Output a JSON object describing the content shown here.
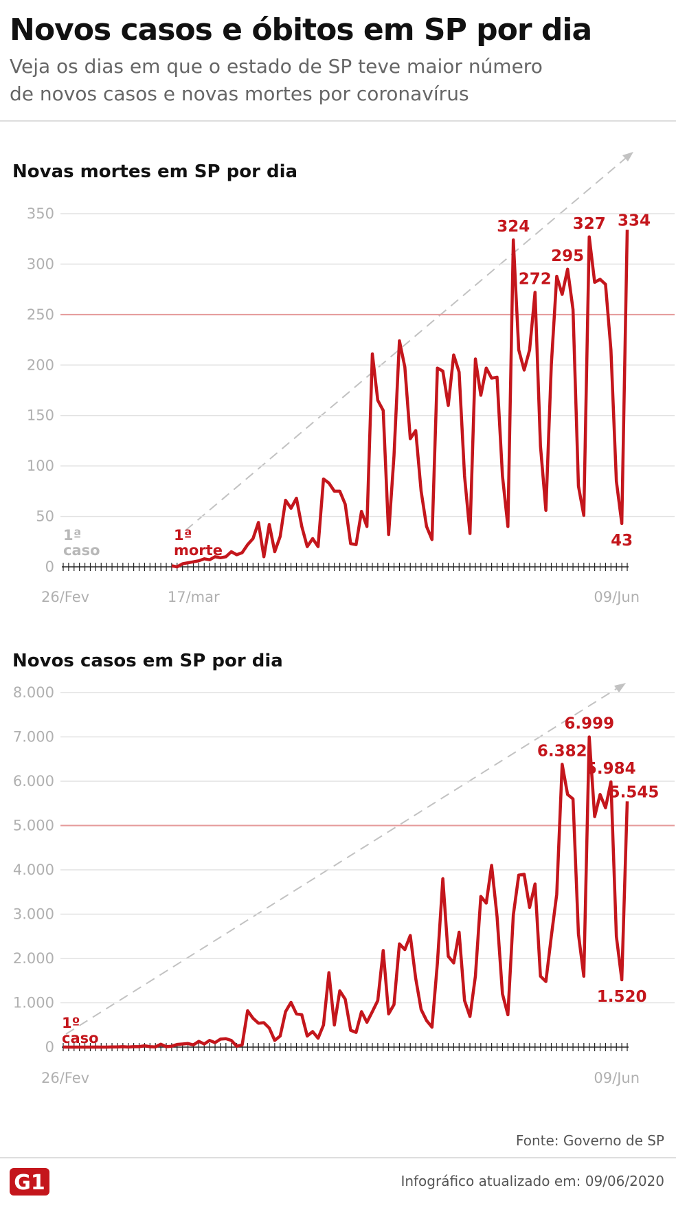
{
  "header": {
    "title": "Novos casos e óbitos em SP por dia",
    "subtitle_lines": [
      "Veja os dias em que o estado de SP teve maior número",
      "de novos casos e novas mortes por coronavírus"
    ]
  },
  "chart_data": [
    {
      "type": "line",
      "title": "Novas mortes em SP por dia",
      "color": "#c4161c",
      "categories": [
        "26/Fev",
        null,
        null,
        null,
        null,
        null,
        null,
        null,
        null,
        null,
        null,
        null,
        null,
        null,
        null,
        null,
        null,
        null,
        null,
        null,
        "17/mar",
        null,
        null,
        null,
        null,
        null,
        null,
        null,
        null,
        null,
        null,
        null,
        null,
        null,
        null,
        null,
        null,
        null,
        null,
        null,
        null,
        null,
        null,
        null,
        null,
        null,
        null,
        null,
        null,
        null,
        null,
        null,
        null,
        null,
        null,
        null,
        null,
        null,
        null,
        null,
        null,
        null,
        null,
        null,
        null,
        null,
        null,
        null,
        null,
        null,
        null,
        null,
        null,
        null,
        null,
        null,
        null,
        null,
        null,
        null,
        null,
        null,
        null,
        null,
        null,
        null,
        null,
        null,
        null,
        null,
        null,
        null,
        null,
        null,
        null,
        null,
        null,
        null,
        null,
        null,
        null,
        null,
        null,
        null,
        "09/Jun"
      ],
      "values": [
        null,
        null,
        null,
        null,
        null,
        null,
        null,
        null,
        null,
        null,
        null,
        null,
        null,
        null,
        null,
        null,
        null,
        null,
        null,
        null,
        1,
        0,
        3,
        4,
        5,
        6,
        8,
        7,
        10,
        9,
        10,
        15,
        12,
        14,
        22,
        28,
        44,
        10,
        42,
        15,
        30,
        66,
        58,
        68,
        40,
        20,
        28,
        20,
        87,
        83,
        75,
        75,
        62,
        23,
        22,
        55,
        40,
        211,
        165,
        155,
        32,
        110,
        224,
        198,
        127,
        135,
        75,
        40,
        27,
        197,
        194,
        160,
        210,
        193,
        90,
        33,
        206,
        170,
        197,
        187,
        188,
        90,
        40,
        324,
        215,
        195,
        215,
        272,
        120,
        56,
        200,
        288,
        270,
        295,
        255,
        80,
        51,
        327,
        282,
        285,
        280,
        215,
        85,
        43,
        334
      ],
      "value_labels": {
        "83": "324",
        "87": "272",
        "93": "295",
        "97": "327",
        "103": "43",
        "104": "334"
      },
      "annotations": [
        {
          "lines": [
            "1ª",
            "caso"
          ],
          "color": "#b8b8b8"
        },
        {
          "lines": [
            "1ª",
            "morte"
          ],
          "color": "#c4161c"
        }
      ],
      "ylim": [
        0,
        350
      ],
      "yticks": [
        0,
        50,
        100,
        150,
        200,
        250,
        300,
        350
      ],
      "grid": true,
      "reference_line": 250
    },
    {
      "type": "line",
      "title": "Novos casos em SP por dia",
      "color": "#c4161c",
      "categories": [
        "26/Fev",
        null,
        null,
        null,
        null,
        null,
        null,
        null,
        null,
        null,
        null,
        null,
        null,
        null,
        null,
        null,
        null,
        null,
        null,
        null,
        null,
        null,
        null,
        null,
        null,
        null,
        null,
        null,
        null,
        null,
        null,
        null,
        null,
        null,
        null,
        null,
        null,
        null,
        null,
        null,
        null,
        null,
        null,
        null,
        null,
        null,
        null,
        null,
        null,
        null,
        null,
        null,
        null,
        null,
        null,
        null,
        null,
        null,
        null,
        null,
        null,
        null,
        null,
        null,
        null,
        null,
        null,
        null,
        null,
        null,
        null,
        null,
        null,
        null,
        null,
        null,
        null,
        null,
        null,
        null,
        null,
        null,
        null,
        null,
        null,
        null,
        null,
        null,
        null,
        null,
        null,
        null,
        null,
        null,
        null,
        null,
        null,
        null,
        null,
        null,
        null,
        null,
        null,
        null,
        "09/Jun"
      ],
      "values": [
        1,
        0,
        0,
        0,
        0,
        0,
        1,
        0,
        0,
        3,
        3,
        10,
        2,
        10,
        9,
        30,
        10,
        5,
        65,
        10,
        20,
        60,
        70,
        80,
        50,
        130,
        70,
        150,
        100,
        180,
        190,
        150,
        20,
        50,
        820,
        650,
        540,
        550,
        430,
        150,
        250,
        800,
        1010,
        750,
        730,
        250,
        350,
        200,
        500,
        1680,
        500,
        1270,
        1080,
        380,
        330,
        800,
        560,
        800,
        1050,
        2180,
        750,
        960,
        2330,
        2200,
        2520,
        1550,
        850,
        600,
        450,
        1900,
        3800,
        2050,
        1900,
        2590,
        1050,
        690,
        1600,
        3400,
        3250,
        4100,
        2950,
        1200,
        730,
        2980,
        3880,
        3900,
        3150,
        3680,
        1600,
        1480,
        2500,
        3450,
        6382,
        5700,
        5600,
        2550,
        1600,
        6999,
        5200,
        5700,
        5400,
        5984,
        2500,
        1520,
        5545
      ],
      "value_labels": {
        "92": "6.382",
        "97": "6.999",
        "101": "5.984",
        "103": "1.520",
        "104": "5.545"
      },
      "annotations": [
        {
          "lines": [
            "1º",
            "caso"
          ],
          "color": "#c4161c"
        }
      ],
      "ylim": [
        0,
        8000
      ],
      "yticks": [
        0,
        {
          "value": 1000,
          "label": "1.000"
        },
        {
          "value": 2000,
          "label": "2.000"
        },
        {
          "value": 3000,
          "label": "3.000"
        },
        {
          "value": 4000,
          "label": "4.000"
        },
        {
          "value": 5000,
          "label": "5.000"
        },
        {
          "value": 6000,
          "label": "6.000"
        },
        {
          "value": 7000,
          "label": "7.000"
        },
        {
          "value": 8000,
          "label": "8.000"
        }
      ],
      "grid": true,
      "reference_line": 5000
    }
  ],
  "footer": {
    "source": "Fonte: Governo de SP",
    "updated": "Infográfico atualizado em: 09/06/2020",
    "logo": "G1"
  }
}
